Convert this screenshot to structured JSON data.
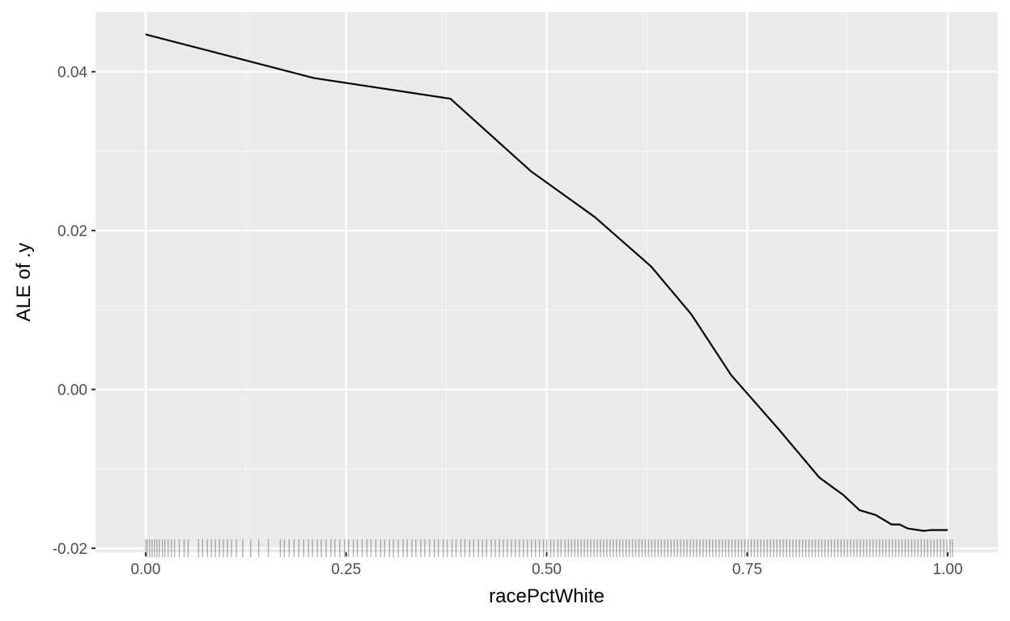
{
  "chart_data": {
    "type": "line",
    "title": "",
    "xlabel": "racePctWhite",
    "ylabel": "ALE of .y",
    "xlim": [
      -0.0625,
      1.0625
    ],
    "ylim": [
      -0.0205,
      0.0475
    ],
    "x_ticks": [
      0.0,
      0.25,
      0.5,
      0.75,
      1.0
    ],
    "x_tick_labels": [
      "0.00",
      "0.25",
      "0.50",
      "0.75",
      "1.00"
    ],
    "x_minor_ticks": [
      0.125,
      0.375,
      0.625,
      0.875
    ],
    "y_ticks": [
      -0.02,
      0.0,
      0.02,
      0.04
    ],
    "y_tick_labels": [
      "-0.02",
      "0.00",
      "0.02",
      "0.04"
    ],
    "y_minor_ticks": [
      -0.01,
      0.01,
      0.03
    ],
    "grid": true,
    "series": [
      {
        "x": [
          0.0,
          0.21,
          0.38,
          0.48,
          0.56,
          0.63,
          0.68,
          0.73,
          0.79,
          0.84,
          0.87,
          0.89,
          0.91,
          0.93,
          0.94,
          0.95,
          0.97,
          0.98,
          1.0
        ],
        "y": [
          0.0447,
          0.0392,
          0.0366,
          0.0275,
          0.0217,
          0.0155,
          0.0095,
          0.0018,
          -0.0051,
          -0.0111,
          -0.0133,
          -0.0152,
          -0.0158,
          -0.017,
          -0.017,
          -0.0175,
          -0.0178,
          -0.0177,
          -0.0177
        ]
      }
    ],
    "rug": {
      "y_position": -0.02,
      "x": [
        0.0,
        0.002,
        0.005,
        0.008,
        0.011,
        0.014,
        0.017,
        0.021,
        0.024,
        0.028,
        0.032,
        0.036,
        0.042,
        0.048,
        0.053,
        0.066,
        0.071,
        0.077,
        0.082,
        0.087,
        0.092,
        0.097,
        0.102,
        0.107,
        0.113,
        0.121,
        0.131,
        0.141,
        0.153,
        0.168,
        0.173,
        0.179,
        0.185,
        0.191,
        0.197,
        0.203,
        0.208,
        0.214,
        0.219,
        0.225,
        0.231,
        0.236,
        0.242,
        0.248,
        0.253,
        0.259,
        0.264,
        0.27,
        0.276,
        0.281,
        0.287,
        0.293,
        0.298,
        0.304,
        0.309,
        0.315,
        0.321,
        0.326,
        0.332,
        0.337,
        0.343,
        0.348,
        0.354,
        0.36,
        0.365,
        0.371,
        0.376,
        0.382,
        0.387,
        0.393,
        0.398,
        0.404,
        0.409,
        0.415,
        0.42,
        0.425,
        0.431,
        0.436,
        0.441,
        0.446,
        0.451,
        0.456,
        0.461,
        0.466,
        0.471,
        0.476,
        0.481,
        0.486,
        0.491,
        0.496,
        0.5,
        0.505,
        0.509,
        0.514,
        0.518,
        0.523,
        0.527,
        0.531,
        0.535,
        0.539,
        0.543,
        0.547,
        0.551,
        0.555,
        0.559,
        0.563,
        0.567,
        0.571,
        0.575,
        0.579,
        0.583,
        0.587,
        0.591,
        0.595,
        0.599,
        0.603,
        0.607,
        0.611,
        0.615,
        0.619,
        0.623,
        0.627,
        0.631,
        0.635,
        0.639,
        0.643,
        0.647,
        0.651,
        0.655,
        0.659,
        0.663,
        0.667,
        0.671,
        0.675,
        0.679,
        0.683,
        0.687,
        0.691,
        0.695,
        0.699,
        0.703,
        0.707,
        0.711,
        0.715,
        0.719,
        0.723,
        0.727,
        0.731,
        0.735,
        0.739,
        0.743,
        0.747,
        0.751,
        0.755,
        0.759,
        0.763,
        0.767,
        0.771,
        0.775,
        0.779,
        0.783,
        0.787,
        0.791,
        0.795,
        0.799,
        0.803,
        0.807,
        0.811,
        0.815,
        0.819,
        0.823,
        0.827,
        0.831,
        0.835,
        0.839,
        0.843,
        0.847,
        0.851,
        0.855,
        0.859,
        0.863,
        0.867,
        0.871,
        0.875,
        0.879,
        0.883,
        0.887,
        0.891,
        0.895,
        0.899,
        0.903,
        0.907,
        0.911,
        0.915,
        0.919,
        0.923,
        0.927,
        0.931,
        0.935,
        0.939,
        0.943,
        0.947,
        0.951,
        0.955,
        0.959,
        0.963,
        0.967,
        0.971,
        0.975,
        0.979,
        0.983,
        0.987,
        0.991,
        0.995,
        0.999,
        1.003,
        1.006
      ]
    }
  }
}
